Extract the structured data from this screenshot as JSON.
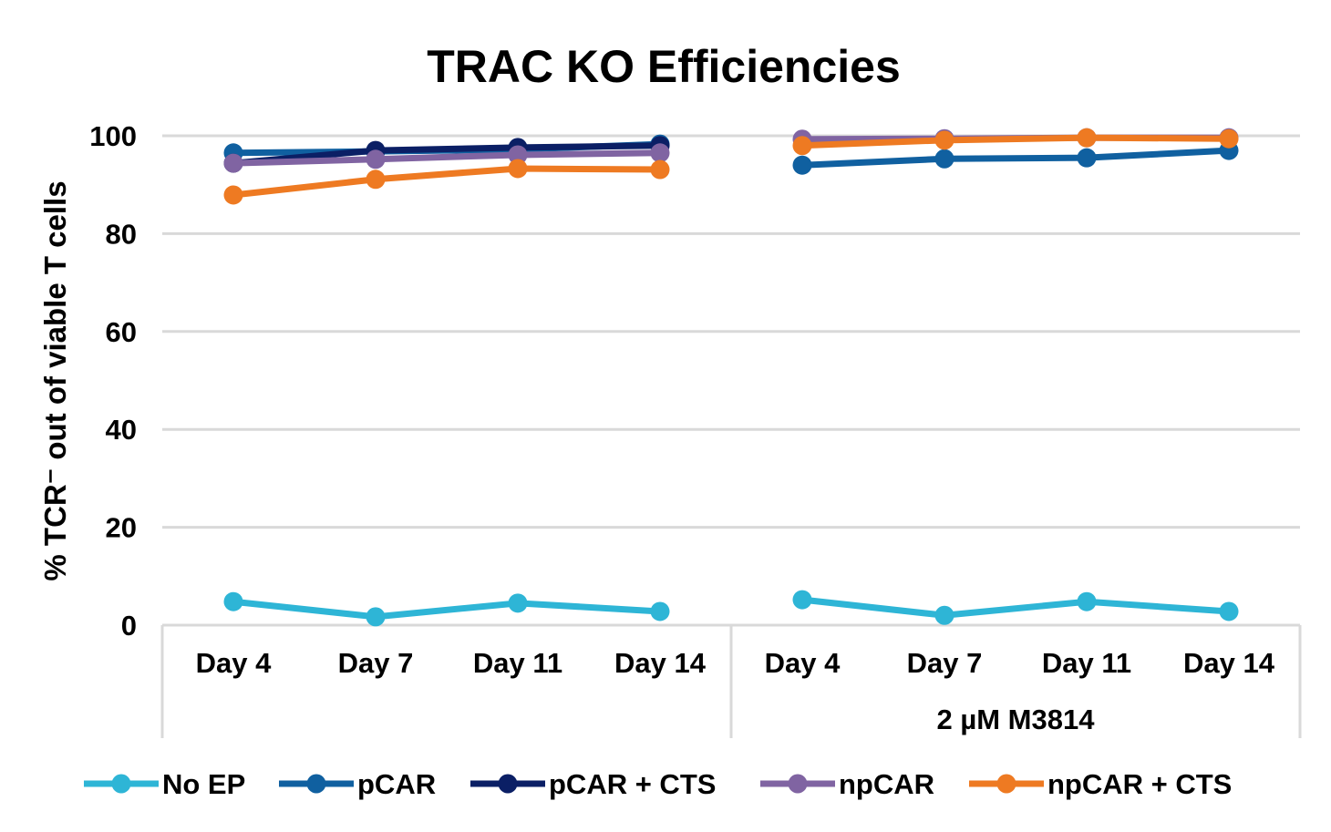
{
  "chart_data": {
    "type": "line",
    "title": "TRAC KO Efficiencies",
    "ylabel": "% TCR⁻ out of viable T cells",
    "xlabel": "",
    "ylim": [
      0,
      100
    ],
    "yticks": [
      0,
      20,
      40,
      60,
      80,
      100
    ],
    "grid": true,
    "legend": "bottom",
    "groups": [
      {
        "label": "",
        "categories": [
          "Day 4",
          "Day 7",
          "Day 11",
          "Day 14"
        ]
      },
      {
        "label": "2 µM M3814",
        "categories": [
          "Day 4",
          "Day 7",
          "Day 11",
          "Day 14"
        ]
      }
    ],
    "series": [
      {
        "name": "No EP",
        "color": "#2EB5D6",
        "groups": [
          [
            4.8,
            1.7,
            4.5,
            2.8
          ],
          [
            5.2,
            2.0,
            4.8,
            2.8
          ]
        ]
      },
      {
        "name": "pCAR",
        "color": "#1060A0",
        "groups": [
          [
            96.5,
            96.8,
            97.2,
            98.3
          ],
          [
            94.0,
            95.3,
            95.5,
            97.0
          ]
        ]
      },
      {
        "name": "pCAR + CTS",
        "color": "#0B1F65",
        "groups": [
          [
            94.4,
            97.0,
            97.6,
            98.0
          ],
          [
            null,
            null,
            null,
            null
          ]
        ]
      },
      {
        "name": "npCAR",
        "color": "#8064A2",
        "groups": [
          [
            94.4,
            95.2,
            96.1,
            96.5
          ],
          [
            99.3,
            99.4,
            99.6,
            99.6
          ]
        ]
      },
      {
        "name": "npCAR + CTS",
        "color": "#EE7A22",
        "groups": [
          [
            87.9,
            91.1,
            93.3,
            93.1
          ],
          [
            98.0,
            99.1,
            99.6,
            99.4
          ]
        ]
      }
    ]
  }
}
